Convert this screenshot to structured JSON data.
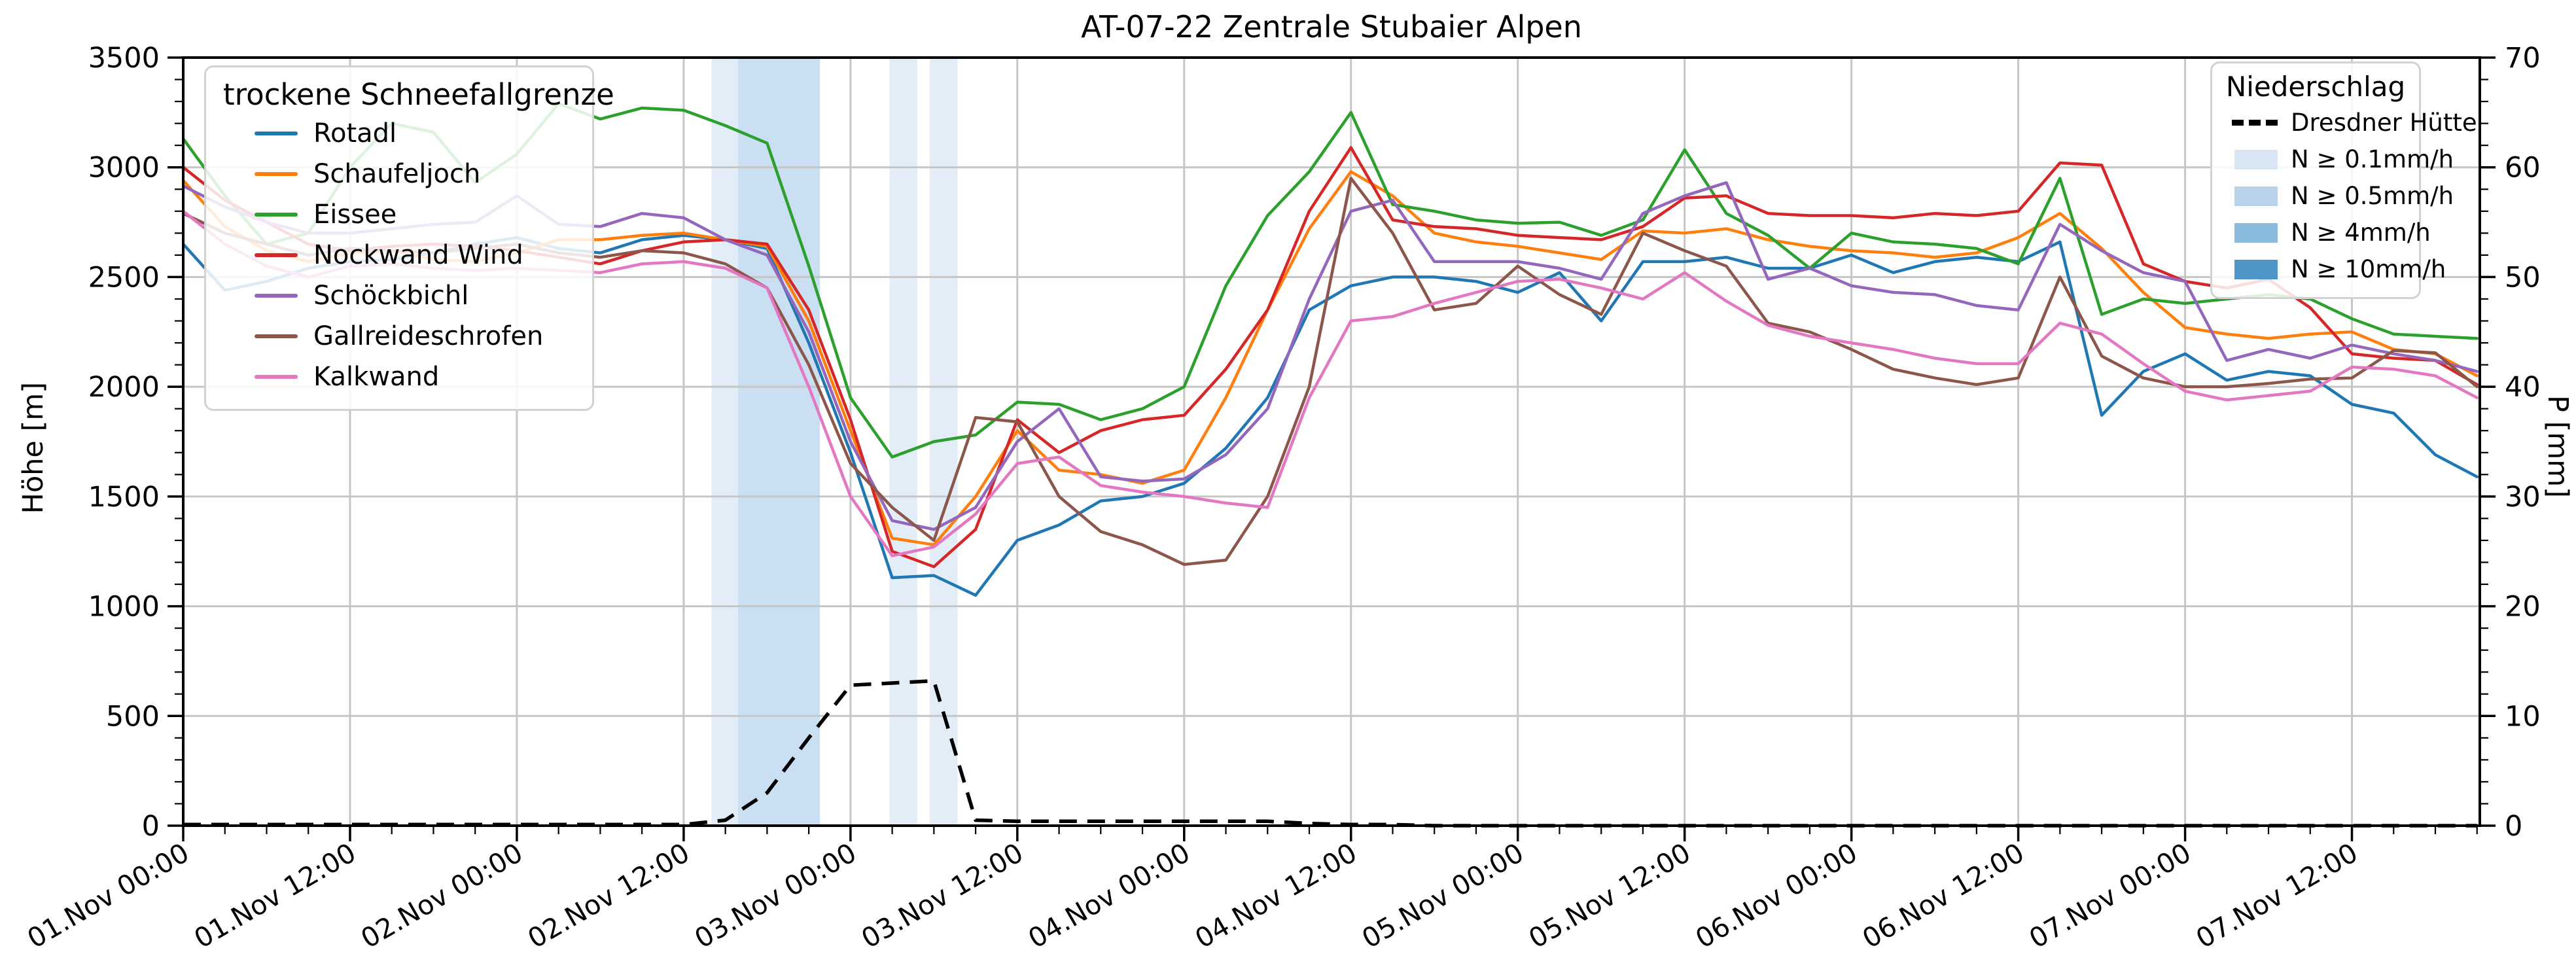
{
  "title": "AT-07-22 Zentrale Stubaier Alpen",
  "left_legend": {
    "title": "trockene Schneefallgrenze",
    "items": [
      {
        "label": "Rotadl",
        "color": "#1f77b4"
      },
      {
        "label": "Schaufeljoch",
        "color": "#ff7f0e"
      },
      {
        "label": "Eissee",
        "color": "#2ca02c"
      },
      {
        "label": "Nockwand Wind",
        "color": "#d62728"
      },
      {
        "label": "Schöckbichl",
        "color": "#9467bd"
      },
      {
        "label": "Gallreideschrofen",
        "color": "#8c564b"
      },
      {
        "label": "Kalkwand",
        "color": "#e377c2"
      }
    ]
  },
  "right_legend": {
    "title": "Niederschlag",
    "line_item": {
      "label": "Dresdner Hütte",
      "color": "#000000"
    },
    "patch_items": [
      {
        "label": "N ≥ 0.1mm/h",
        "color": "#d9e7f5"
      },
      {
        "label": "N ≥ 0.5mm/h",
        "color": "#b9d4ea"
      },
      {
        "label": "N ≥ 4mm/h",
        "color": "#8abadb"
      },
      {
        "label": "N ≥ 10mm/h",
        "color": "#4e96c8"
      }
    ]
  },
  "chart_data": {
    "type": "line",
    "title": "AT-07-22 Zentrale Stubaier Alpen",
    "xlabel": "",
    "ylabel": "Höhe [m]",
    "y2label": "P [mm]",
    "ylim": [
      0,
      3500
    ],
    "y2lim": [
      0,
      70
    ],
    "grid": true,
    "x_unit": "hours since 01.Nov 00:00",
    "x_range_hours": [
      0,
      165.2
    ],
    "x_tick_hours": [
      0,
      12,
      24,
      36,
      48,
      60,
      72,
      84,
      96,
      108,
      120,
      132,
      144,
      156
    ],
    "x_tick_labels": [
      "01.Nov 00:00",
      "01.Nov 12:00",
      "02.Nov 00:00",
      "02.Nov 12:00",
      "03.Nov 00:00",
      "03.Nov 12:00",
      "04.Nov 00:00",
      "04.Nov 12:00",
      "05.Nov 00:00",
      "05.Nov 12:00",
      "06.Nov 00:00",
      "06.Nov 12:00",
      "07.Nov 00:00",
      "07.Nov 12:00"
    ],
    "x_minor_step_hours": 3,
    "y_ticks": [
      0,
      500,
      1000,
      1500,
      2000,
      2500,
      3000,
      3500
    ],
    "y_minor_step": 100,
    "y2_ticks": [
      0,
      10,
      20,
      30,
      40,
      50,
      60,
      70
    ],
    "y2_minor_step": 2,
    "times": [
      0,
      3,
      6,
      9,
      12,
      15,
      18,
      21,
      24,
      27,
      30,
      33,
      36,
      39,
      42,
      45,
      48,
      51,
      54,
      57,
      60,
      63,
      66,
      69,
      72,
      75,
      78,
      81,
      84,
      87,
      90,
      93,
      96,
      99,
      102,
      105,
      108,
      111,
      114,
      117,
      120,
      123,
      126,
      129,
      132,
      135,
      138,
      141,
      144,
      147,
      150,
      153,
      156,
      159,
      162,
      165
    ],
    "series": [
      {
        "name": "Rotadl",
        "color": "#1f77b4",
        "values": [
          2650,
          2440,
          2480,
          2540,
          2570,
          2580,
          2610,
          2650,
          2680,
          2630,
          2610,
          2670,
          2690,
          2670,
          2630,
          2200,
          1700,
          1130,
          1140,
          1050,
          1300,
          1370,
          1480,
          1500,
          1560,
          1720,
          1950,
          2350,
          2460,
          2500,
          2500,
          2480,
          2430,
          2520,
          2300,
          2570,
          2570,
          2590,
          2540,
          2540,
          2600,
          2520,
          2570,
          2590,
          2570,
          2660,
          1870,
          2070,
          2150,
          2030,
          2070,
          2050,
          1920,
          1880,
          1690,
          1590
        ]
      },
      {
        "name": "Schaufeljoch",
        "color": "#ff7f0e",
        "values": [
          2940,
          2730,
          2620,
          2570,
          2610,
          2620,
          2580,
          2570,
          2610,
          2670,
          2670,
          2690,
          2700,
          2670,
          2640,
          2300,
          1800,
          1310,
          1280,
          1500,
          1800,
          1620,
          1600,
          1560,
          1620,
          1950,
          2350,
          2720,
          2980,
          2870,
          2700,
          2660,
          2640,
          2610,
          2580,
          2710,
          2700,
          2720,
          2670,
          2640,
          2620,
          2610,
          2590,
          2610,
          2680,
          2790,
          2630,
          2430,
          2270,
          2240,
          2220,
          2240,
          2250,
          2170,
          2150,
          2050
        ]
      },
      {
        "name": "Eissee",
        "color": "#2ca02c",
        "values": [
          3130,
          2870,
          2650,
          2700,
          3000,
          3200,
          3160,
          2930,
          3060,
          3290,
          3220,
          3270,
          3260,
          3190,
          3110,
          2550,
          1950,
          1680,
          1750,
          1780,
          1930,
          1920,
          1850,
          1900,
          2000,
          2460,
          2780,
          2980,
          3250,
          2830,
          2800,
          2760,
          2745,
          2750,
          2690,
          2760,
          3080,
          2790,
          2690,
          2540,
          2700,
          2660,
          2650,
          2630,
          2560,
          2950,
          2330,
          2400,
          2380,
          2400,
          2420,
          2400,
          2310,
          2240,
          2230,
          2220
        ]
      },
      {
        "name": "Nockwand Wind",
        "color": "#d62728",
        "values": [
          3000,
          2850,
          2750,
          2650,
          2620,
          2640,
          2650,
          2640,
          2620,
          2590,
          2560,
          2620,
          2660,
          2670,
          2650,
          2350,
          1850,
          1250,
          1180,
          1350,
          1850,
          1700,
          1800,
          1850,
          1870,
          2080,
          2350,
          2800,
          3090,
          2760,
          2730,
          2720,
          2690,
          2680,
          2670,
          2730,
          2860,
          2870,
          2790,
          2780,
          2780,
          2770,
          2790,
          2780,
          2800,
          3020,
          3010,
          2560,
          2480,
          2450,
          2490,
          2360,
          2150,
          2130,
          2120,
          2010
        ]
      },
      {
        "name": "Schöckbichl",
        "color": "#9467bd",
        "values": [
          2915,
          2820,
          2750,
          2700,
          2700,
          2720,
          2740,
          2750,
          2870,
          2740,
          2730,
          2790,
          2770,
          2670,
          2600,
          2250,
          1750,
          1390,
          1350,
          1450,
          1750,
          1900,
          1590,
          1570,
          1580,
          1690,
          1900,
          2400,
          2800,
          2850,
          2570,
          2570,
          2570,
          2540,
          2490,
          2790,
          2870,
          2930,
          2490,
          2540,
          2460,
          2430,
          2420,
          2370,
          2350,
          2740,
          2620,
          2520,
          2480,
          2120,
          2170,
          2130,
          2190,
          2150,
          2120,
          2070
        ]
      },
      {
        "name": "Gallreideschrofen",
        "color": "#8c564b",
        "values": [
          2790,
          2700,
          2650,
          2600,
          2630,
          2620,
          2610,
          2630,
          2650,
          2610,
          2590,
          2620,
          2610,
          2560,
          2450,
          2100,
          1650,
          1450,
          1300,
          1860,
          1840,
          1500,
          1340,
          1280,
          1190,
          1210,
          1500,
          2000,
          2950,
          2700,
          2350,
          2380,
          2550,
          2420,
          2330,
          2700,
          2620,
          2550,
          2290,
          2250,
          2170,
          2080,
          2040,
          2010,
          2040,
          2500,
          2140,
          2040,
          2000,
          2000,
          2015,
          2035,
          2040,
          2165,
          2155,
          2000
        ]
      },
      {
        "name": "Kalkwand",
        "color": "#e377c2",
        "values": [
          2800,
          2650,
          2550,
          2500,
          2550,
          2560,
          2540,
          2530,
          2540,
          2530,
          2520,
          2560,
          2570,
          2540,
          2450,
          2000,
          1500,
          1230,
          1270,
          1420,
          1650,
          1680,
          1550,
          1520,
          1500,
          1470,
          1450,
          1950,
          2300,
          2320,
          2380,
          2430,
          2480,
          2490,
          2450,
          2400,
          2520,
          2390,
          2280,
          2230,
          2200,
          2170,
          2130,
          2105,
          2105,
          2290,
          2240,
          2105,
          1980,
          1940,
          1960,
          1980,
          2090,
          2080,
          2050,
          1950
        ]
      }
    ],
    "precip_line": {
      "name": "Dresdner Hütte",
      "axis": "right",
      "style": "dashed",
      "color": "#000000",
      "unit": "mm",
      "values": [
        0.1,
        0.1,
        0.1,
        0.1,
        0.1,
        0.1,
        0.1,
        0.1,
        0.1,
        0.1,
        0.1,
        0.1,
        0.1,
        0.5,
        3,
        8,
        12.8,
        13,
        13.2,
        0.5,
        0.4,
        0.4,
        0.4,
        0.4,
        0.4,
        0.4,
        0.4,
        0.2,
        0.1,
        0.1,
        0,
        0,
        0,
        0,
        0,
        0,
        0,
        0,
        0,
        0,
        0,
        0,
        0,
        0,
        0,
        0,
        0,
        0,
        0,
        0,
        0,
        0,
        0,
        0,
        0,
        0
      ]
    },
    "precip_bands": [
      {
        "from_hour": 38.0,
        "to_hour": 39.9,
        "level": "N ≥ 0.1mm/h"
      },
      {
        "from_hour": 39.9,
        "to_hour": 45.8,
        "level": "N ≥ 0.5mm/h"
      },
      {
        "from_hour": 50.8,
        "to_hour": 52.8,
        "level": "N ≥ 0.1mm/h"
      },
      {
        "from_hour": 53.7,
        "to_hour": 55.7,
        "level": "N ≥ 0.1mm/h"
      }
    ],
    "band_fill_colors": {
      "N ≥ 0.1mm/h": "#e2edf8",
      "N ≥ 0.5mm/h": "#cbdff2"
    },
    "legend_positions": {
      "snowline": "upper left",
      "precip": "upper right"
    },
    "grid_color": "#c6c6c6"
  }
}
